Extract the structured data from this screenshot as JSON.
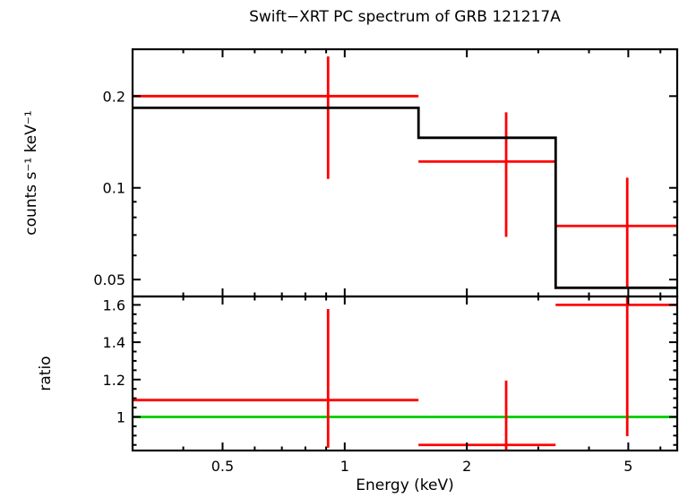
{
  "title": "Swift−XRT PC spectrum of GRB 121217A",
  "chart_data": {
    "type": "line",
    "subtype": "x-ray-spectrum-with-ratio-panel",
    "xlabel": "Energy (keV)",
    "xscale": "log",
    "xlim": [
      0.3,
      6.6
    ],
    "xticks": [
      0.5,
      1,
      2,
      5
    ],
    "xminor": [
      0.4,
      0.6,
      0.7,
      0.8,
      0.9,
      3,
      4,
      6
    ],
    "grid": false,
    "legend": "none",
    "colors": {
      "data": "#ff0000",
      "model": "#000000",
      "reference": "#00cc00",
      "frame": "#000000"
    },
    "panels": [
      {
        "name": "spectrum",
        "ylabel": "counts s⁻¹ keV⁻¹",
        "yscale": "log",
        "ylim": [
          0.044,
          0.285
        ],
        "yticks": [
          0.05,
          0.1,
          0.2
        ],
        "yminor": [
          0.06,
          0.07,
          0.08,
          0.09
        ],
        "series": [
          {
            "name": "observed-counts",
            "style": "cross",
            "color_key": "data",
            "points": [
              {
                "x": 0.91,
                "xlo": 0.3,
                "xhi": 1.52,
                "y": 0.2,
                "ylo": 0.107,
                "yhi": 0.27
              },
              {
                "x": 2.5,
                "xlo": 1.52,
                "xhi": 3.31,
                "y": 0.122,
                "ylo": 0.069,
                "yhi": 0.177
              },
              {
                "x": 4.97,
                "xlo": 3.31,
                "xhi": 6.6,
                "y": 0.075,
                "ylo": 0.047,
                "yhi": 0.108
              }
            ]
          },
          {
            "name": "folded-model",
            "style": "steps",
            "color_key": "model",
            "steps": [
              {
                "xlo": 0.3,
                "xhi": 1.52,
                "y": 0.183
              },
              {
                "xlo": 1.52,
                "xhi": 3.31,
                "y": 0.146
              },
              {
                "xlo": 3.31,
                "xhi": 6.6,
                "y": 0.047
              }
            ]
          }
        ]
      },
      {
        "name": "ratio",
        "ylabel": "ratio",
        "yscale": "linear",
        "ylim": [
          0.82,
          1.645
        ],
        "yticks": [
          1,
          1.2,
          1.4,
          1.6
        ],
        "yminor": [
          0.85,
          0.9,
          0.95,
          1.05,
          1.1,
          1.15,
          1.25,
          1.3,
          1.35,
          1.45,
          1.5,
          1.55
        ],
        "reference_line": {
          "y": 1,
          "color_key": "reference"
        },
        "series": [
          {
            "name": "data-to-model-ratio",
            "style": "cross",
            "color_key": "data",
            "points": [
              {
                "x": 0.91,
                "xlo": 0.3,
                "xhi": 1.52,
                "y": 1.09,
                "ylo": 0.835,
                "yhi": 1.578
              },
              {
                "x": 2.5,
                "xlo": 1.52,
                "xhi": 3.31,
                "y": 0.85,
                "ylo": 0.82,
                "yhi": 1.195
              },
              {
                "x": 4.97,
                "xlo": 3.31,
                "xhi": 6.6,
                "y": 1.6,
                "ylo": 0.897,
                "yhi": 1.645
              }
            ]
          }
        ]
      }
    ]
  }
}
